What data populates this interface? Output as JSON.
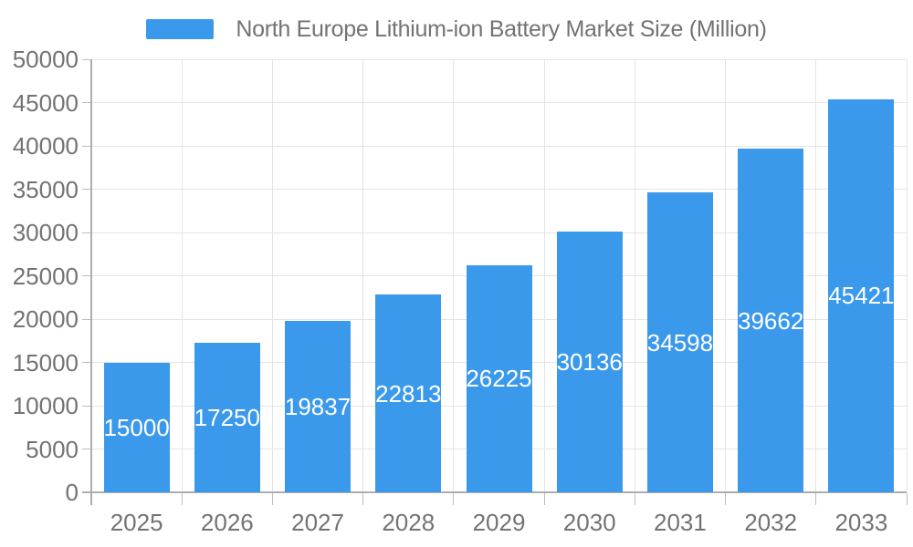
{
  "chart_data": {
    "type": "bar",
    "title": "North Europe Lithium-ion Battery Market Size (Million)",
    "legend": "North Europe Lithium-ion Battery Market Size (Million)",
    "legend_position": "top",
    "categories": [
      "2025",
      "2026",
      "2027",
      "2028",
      "2029",
      "2030",
      "2031",
      "2032",
      "2033"
    ],
    "values": [
      15000,
      17250,
      19837,
      22813,
      26225,
      30136,
      34598,
      39662,
      45421
    ],
    "xlabel": "",
    "ylabel": "",
    "ylim": [
      0,
      50000
    ],
    "ytick_step": 5000,
    "ytick_labels": [
      "0",
      "5000",
      "10000",
      "15000",
      "20000",
      "25000",
      "30000",
      "35000",
      "40000",
      "45000",
      "50000"
    ],
    "grid": true,
    "colors": {
      "bar": "#3B99EC",
      "grid_line": "#E4E4E4",
      "axis_line": "#ADADAD",
      "tick_mark": "#BDBDBD",
      "label_text": "#737373",
      "value_text": "#FFFFFF",
      "background": "#FFFFFF"
    }
  }
}
